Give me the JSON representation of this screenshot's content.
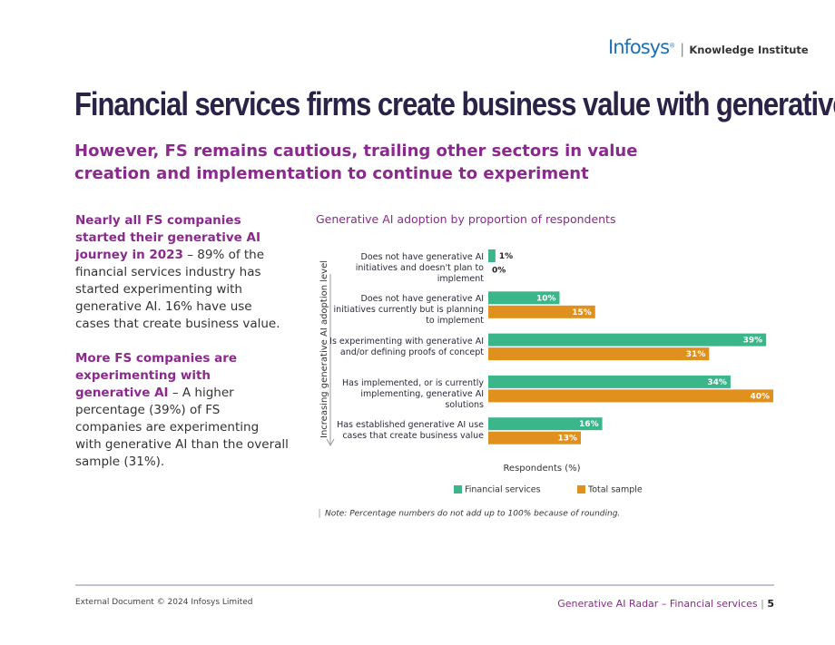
{
  "header": {
    "logo": "Infosys",
    "logo_mark": "®",
    "logo_subtitle": "Knowledge Institute"
  },
  "title": "Financial services firms create business value with generative AI",
  "subtitle": "However, FS remains cautious, trailing other sectors in value creation and implementation to continue to experiment",
  "body": [
    {
      "lead": "Nearly all FS companies started their generative AI journey in 2023",
      "text": " – 89% of the financial services industry has started experimenting with generative AI. 16% have use cases that create business value."
    },
    {
      "lead": "More FS companies are experimenting with generative AI",
      "text": " – A higher percentage (39%) of FS companies are experimenting with generative AI than the overall sample (31%)."
    }
  ],
  "chart_data": {
    "type": "bar",
    "orientation": "horizontal",
    "title": "Generative AI adoption by proportion of respondents",
    "y_label": "Increasing generative AI adoption level",
    "x_label": "Respondents (%)",
    "categories": [
      "Does not have generative AI initiatives and doesn't plan to implement",
      "Does not have generative AI initiatives currently but is planning to implement",
      "Is experimenting with generative AI and/or defining proofs of concept",
      "Has implemented, or is currently implementing, generative AI solutions",
      "Has established generative AI use cases that create business value"
    ],
    "series": [
      {
        "name": "Financial services",
        "color": "#3bb68a",
        "values": [
          1,
          10,
          39,
          34,
          16
        ],
        "value_labels": [
          "1%",
          "10%",
          "39%",
          "34%",
          "16%"
        ]
      },
      {
        "name": "Total sample",
        "color": "#e0901c",
        "values": [
          0,
          15,
          31,
          40,
          13
        ],
        "value_labels": [
          "0%",
          "15%",
          "31%",
          "40%",
          "13%"
        ]
      }
    ],
    "xlim": [
      0,
      40
    ],
    "legend": "bottom",
    "note": "Note: Percentage numbers do not add up to 100% because of rounding."
  },
  "footer": {
    "left": "External Document © 2024 Infosys Limited",
    "right": "Generative AI Radar – Financial services",
    "page": "5"
  }
}
